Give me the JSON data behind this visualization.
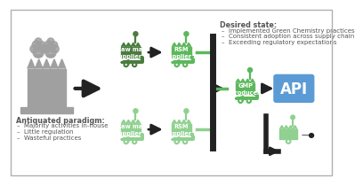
{
  "bg_color": "#ffffff",
  "border_color": "#b0b0b0",
  "dark_green": "#4a7c3f",
  "mid_green": "#5cb85c",
  "light_green": "#90d090",
  "gray": "#a0a0a0",
  "dark_gray": "#555555",
  "black": "#222222",
  "blue": "#5b9bd5",
  "desired_state_title": "Desired state:",
  "desired_state_bullets": [
    "Implemented Green Chemistry practices",
    "Consistent adoption across supply chain",
    "Exceeding regulatory expectations"
  ],
  "antiquated_title": "Antiquated paradigm:",
  "antiquated_bullets": [
    "Majority activities in-house",
    "Little regulation",
    "Wasteful practices"
  ],
  "labels": {
    "raw_mat_1": "Raw mat\nsupplier 1",
    "rsm_a": "RSM\nsupplier A",
    "gmp": "GMP\nproducer",
    "api": "API",
    "raw_mat_2": "Raw mat\nsupplier 2",
    "rsm_b": "RSM\nsupplier B"
  }
}
